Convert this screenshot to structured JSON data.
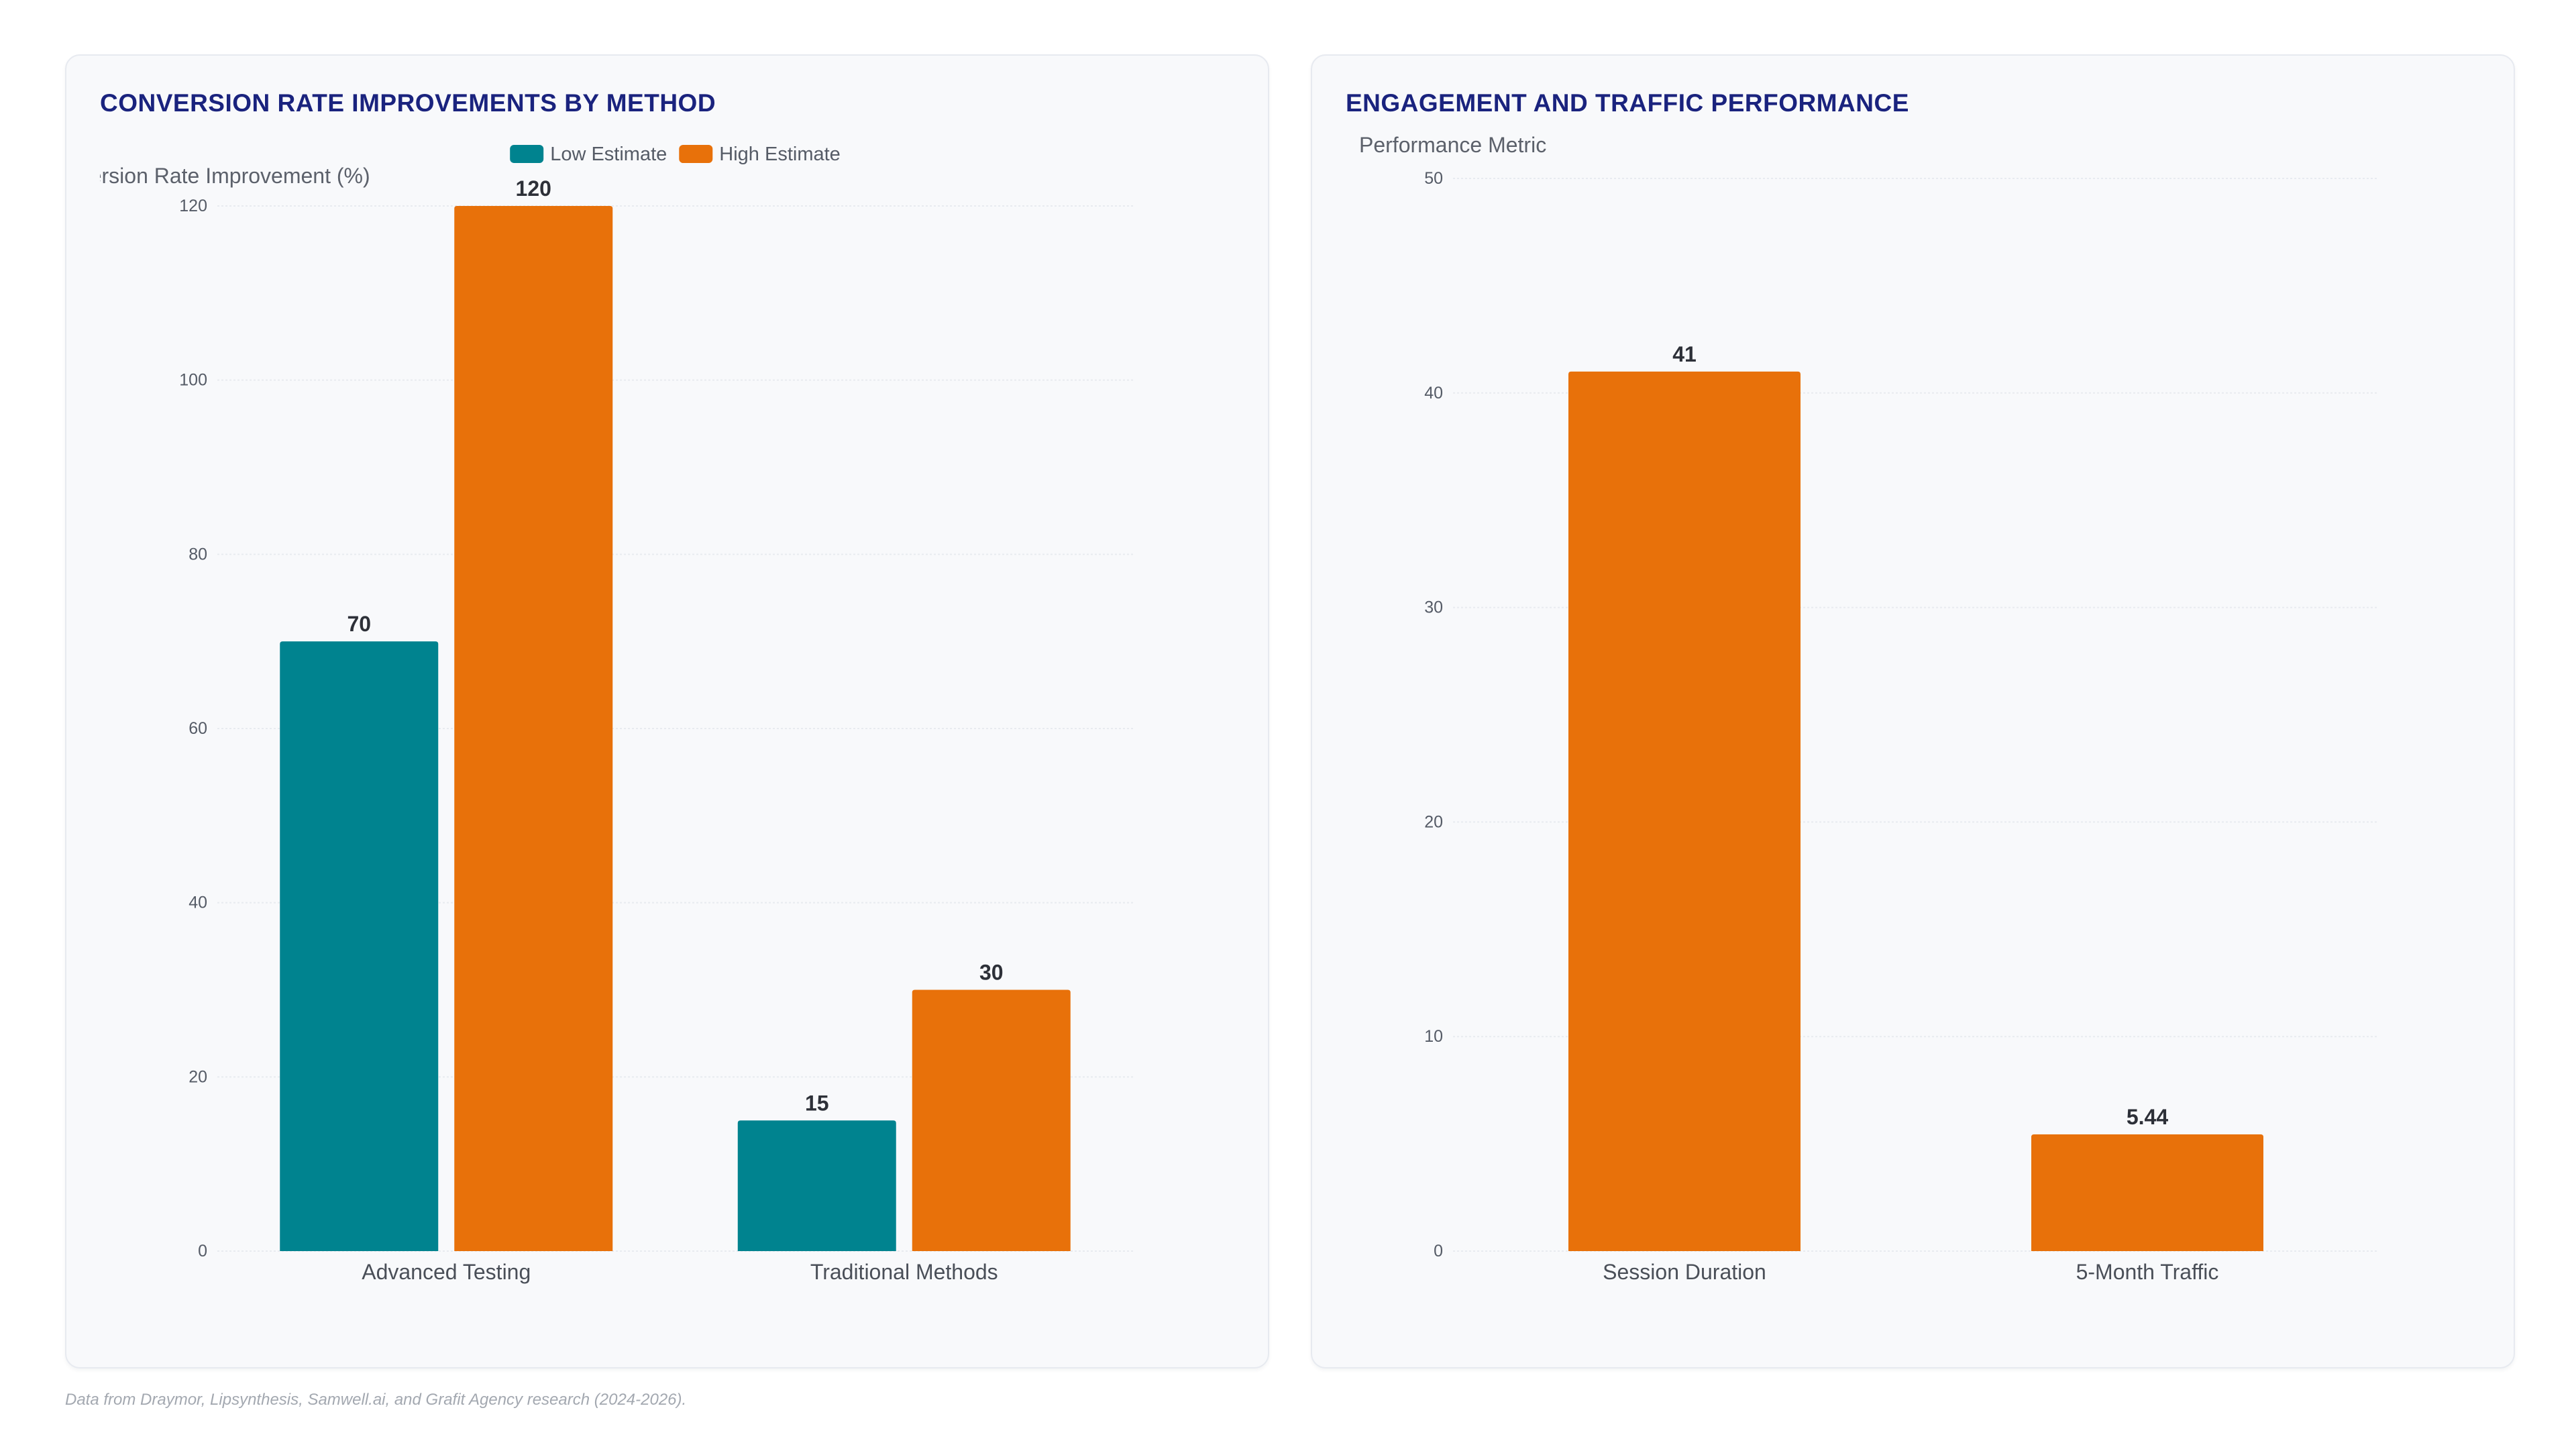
{
  "chart_data": [
    {
      "type": "bar",
      "title": "CONVERSION RATE IMPROVEMENTS BY METHOD",
      "xlabel": "",
      "ylabel": "Conversion Rate Improvement (%)",
      "categories": [
        "Advanced Testing",
        "Traditional Methods"
      ],
      "series": [
        {
          "name": "Low Estimate",
          "color": "#00838f",
          "values": [
            70,
            15
          ]
        },
        {
          "name": "High Estimate",
          "color": "#e8710a",
          "values": [
            120,
            30
          ]
        }
      ],
      "ylim": [
        0,
        120
      ],
      "yticks": [
        0,
        20,
        40,
        60,
        80,
        100,
        120
      ],
      "grid": true,
      "legend": "top-center"
    },
    {
      "type": "bar",
      "title": "ENGAGEMENT AND TRAFFIC PERFORMANCE",
      "xlabel": "",
      "ylabel": "Performance Metric",
      "categories": [
        "Session Duration",
        "5-Month Traffic"
      ],
      "series": [
        {
          "color": "#e8710a",
          "values": [
            41,
            5.44
          ]
        }
      ],
      "ylim": [
        0,
        50
      ],
      "yticks": [
        0,
        10,
        20,
        30,
        40,
        50
      ],
      "grid": true,
      "legend": "none"
    }
  ],
  "footnote": "Data from Draymor, Lipsynthesis, Samwell.ai, and Grafit Agency research (2024-2026)."
}
